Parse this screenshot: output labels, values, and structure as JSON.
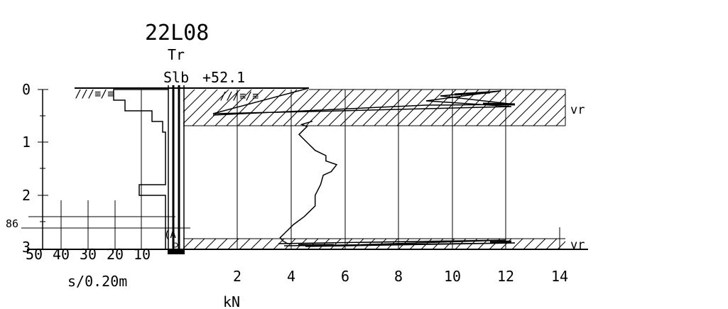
{
  "header": {
    "site_id": "22L08",
    "method": "Tr",
    "sounding": "Slb",
    "elevation": "+52.1"
  },
  "left_axis": {
    "depth_ticks": [
      "0",
      "1",
      "2",
      "3"
    ],
    "water_level_label": "86",
    "blow_ticks": [
      "50",
      "40",
      "30",
      "20",
      "10"
    ],
    "blow_unit": "s/0.20m"
  },
  "bottom_axis": {
    "force_ticks": [
      "2",
      "4",
      "6",
      "8",
      "10",
      "12",
      "14"
    ],
    "force_unit": "kN"
  },
  "layers": {
    "top_label": "vr",
    "bottom_label": "vr"
  },
  "probe_marker": "(A)",
  "surface_symbol": "///≡/≡",
  "chart_data": {
    "type": "line",
    "title": "22L08",
    "xlabel": "kN",
    "ylabel": "",
    "xlim": [
      0,
      14
    ],
    "ylim": [
      0,
      3
    ],
    "y_inverted": true,
    "grid": true,
    "series": [
      {
        "values": [
          [
            4.8,
            0.6
          ],
          [
            4.4,
            0.66
          ],
          [
            4.6,
            0.7
          ],
          [
            4.3,
            0.85
          ],
          [
            4.6,
            1.0
          ],
          [
            4.9,
            1.15
          ],
          [
            5.3,
            1.25
          ],
          [
            5.3,
            1.35
          ],
          [
            5.7,
            1.42
          ],
          [
            5.5,
            1.55
          ],
          [
            5.2,
            1.62
          ],
          [
            5.1,
            1.8
          ],
          [
            4.9,
            2.0
          ],
          [
            4.9,
            2.2
          ],
          [
            4.5,
            2.4
          ],
          [
            4.1,
            2.55
          ],
          [
            3.8,
            2.7
          ],
          [
            3.6,
            2.8
          ],
          [
            3.7,
            2.86
          ],
          [
            3.9,
            2.92
          ]
        ]
      }
    ],
    "blow_profile": {
      "xlabel": "s/0.20m",
      "xlim": [
        0,
        50
      ],
      "steps": [
        {
          "depth_from": 0.0,
          "depth_to": 0.2,
          "value": 20
        },
        {
          "depth_from": 0.2,
          "depth_to": 0.4,
          "value": 16
        },
        {
          "depth_from": 0.4,
          "depth_to": 0.6,
          "value": 6
        },
        {
          "depth_from": 0.6,
          "depth_to": 0.8,
          "value": 2
        },
        {
          "depth_from": 0.8,
          "depth_to": 1.8,
          "value": 1
        },
        {
          "depth_from": 1.8,
          "depth_to": 2.0,
          "value": 10
        },
        {
          "depth_from": 2.0,
          "depth_to": 3.0,
          "value": 1
        }
      ]
    },
    "layer_bands": [
      {
        "depth_from": 0.0,
        "depth_to": 0.7,
        "label": "vr"
      },
      {
        "depth_from": 2.82,
        "depth_to": 3.0,
        "label": "vr"
      }
    ],
    "groundwater_depth": 2.5
  }
}
